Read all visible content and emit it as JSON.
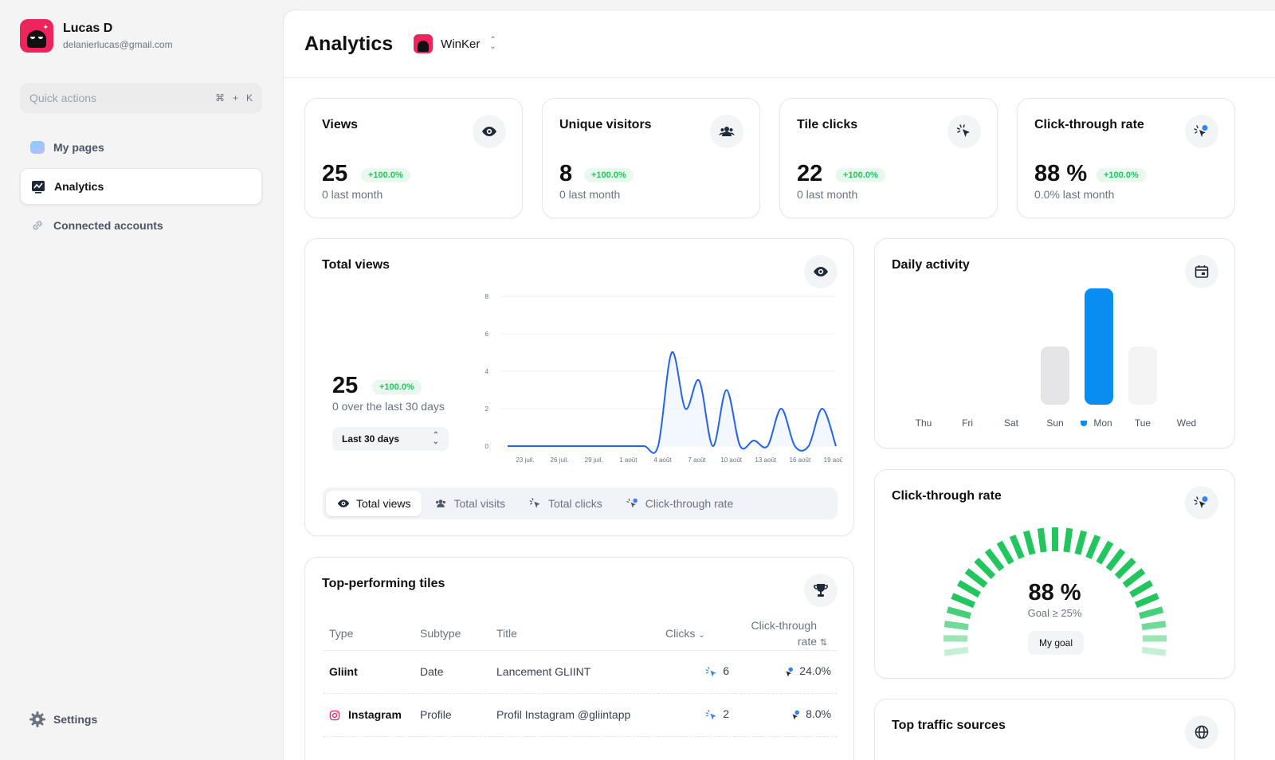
{
  "user": {
    "name": "Lucas D",
    "email": "delanierlucas@gmail.com"
  },
  "quick_actions": {
    "label": "Quick actions",
    "shortcut": [
      "⌘",
      "+",
      "K"
    ]
  },
  "nav": {
    "items": [
      {
        "label": "My pages"
      },
      {
        "label": "Analytics"
      },
      {
        "label": "Connected accounts"
      }
    ],
    "settings": "Settings"
  },
  "header": {
    "title": "Analytics",
    "workspace": "WinKer"
  },
  "stats": [
    {
      "title": "Views",
      "value": "25",
      "badge": "+100.0%",
      "sub": "0 last month",
      "icon": "eye-icon"
    },
    {
      "title": "Unique visitors",
      "value": "8",
      "badge": "+100.0%",
      "sub": "0 last month",
      "icon": "users-icon"
    },
    {
      "title": "Tile clicks",
      "value": "22",
      "badge": "+100.0%",
      "sub": "0 last month",
      "icon": "cursor-click-icon"
    },
    {
      "title": "Click-through rate",
      "value": "88 %",
      "badge": "+100.0%",
      "sub": "0.0% last month",
      "icon": "ctr-icon"
    }
  ],
  "total_views": {
    "title": "Total views",
    "value": "25",
    "badge": "+100.0%",
    "sub": "0 over the last 30 days",
    "range": "Last 30 days",
    "tabs": [
      "Total views",
      "Total visits",
      "Total clicks",
      "Click-through rate"
    ]
  },
  "chart_data": [
    {
      "type": "line",
      "y_ticks": [
        "8",
        "6",
        "4",
        "2",
        "0"
      ],
      "ylim": [
        0,
        8
      ],
      "x_ticks": [
        "23 juil.",
        "26 juil.",
        "29 juil.",
        "1 août",
        "4 août",
        "7 août",
        "10 août",
        "13 août",
        "16 août",
        "19 août"
      ],
      "series": [
        {
          "values": [
            0,
            0,
            0,
            0,
            0,
            0,
            0,
            0,
            0,
            0,
            0,
            0,
            5,
            2,
            3.5,
            0,
            3,
            0,
            0.3,
            0,
            2,
            0,
            0,
            2,
            0
          ]
        }
      ],
      "color": "#2563eb"
    },
    {
      "type": "bar",
      "categories": [
        "Thu",
        "Fri",
        "Sat",
        "Sun",
        "Mon",
        "Tue",
        "Wed"
      ],
      "values": [
        0,
        0,
        0,
        0.5,
        1,
        0.5,
        0
      ],
      "highlight": "Mon",
      "colors": {
        "highlight": "#0a8df0",
        "neutral": "#e5e5e7",
        "faint": "#f4f4f5"
      }
    }
  ],
  "daily_activity": {
    "title": "Daily activity",
    "days": [
      "Thu",
      "Fri",
      "Sat",
      "Sun",
      "Mon",
      "Tue",
      "Wed"
    ]
  },
  "top_tiles": {
    "title": "Top-performing tiles",
    "columns": [
      "Type",
      "Subtype",
      "Title",
      "Clicks",
      "Click-through rate"
    ],
    "rows": [
      {
        "type": "Gliint",
        "subtype": "Date",
        "title": "Lancement GLIINT",
        "clicks": "6",
        "ctr": "24.0%"
      },
      {
        "type": "Instagram",
        "subtype": "Profile",
        "title": "Profil Instagram @gliintapp",
        "clicks": "2",
        "ctr": "8.0%"
      }
    ]
  },
  "ctr_gauge": {
    "title": "Click-through rate",
    "value": "88 %",
    "goal": "Goal ≥ 25%",
    "goal_button": "My goal",
    "percent": 88,
    "color": "#22c55e"
  },
  "traffic": {
    "title": "Top traffic sources"
  }
}
